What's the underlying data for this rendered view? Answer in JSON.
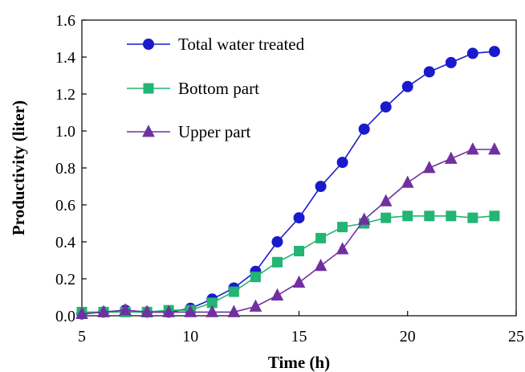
{
  "chart_data": {
    "type": "line",
    "title": "",
    "xlabel": "Time (h)",
    "ylabel": "Productivity (liter)",
    "xlim": [
      5,
      25
    ],
    "ylim": [
      0,
      1.6
    ],
    "xticks": [
      "5",
      "10",
      "15",
      "20",
      "25"
    ],
    "yticks": [
      "0.0",
      "0.2",
      "0.4",
      "0.6",
      "0.8",
      "1.0",
      "1.2",
      "1.4",
      "1.6"
    ],
    "grid": false,
    "legend_position": "top-left",
    "x": [
      5,
      6,
      7,
      8,
      9,
      10,
      11,
      12,
      13,
      14,
      15,
      16,
      17,
      18,
      19,
      20,
      21,
      22,
      23,
      24
    ],
    "series": [
      {
        "name": "Total water treated",
        "color": "#1a1acd",
        "marker": "circle",
        "values": [
          0.01,
          0.02,
          0.03,
          0.02,
          0.02,
          0.04,
          0.09,
          0.15,
          0.24,
          0.4,
          0.53,
          0.7,
          0.83,
          1.01,
          1.13,
          1.24,
          1.32,
          1.37,
          1.42,
          1.43
        ]
      },
      {
        "name": "Bottom part",
        "color": "#22b573",
        "marker": "square",
        "values": [
          0.02,
          0.02,
          0.02,
          0.02,
          0.03,
          0.03,
          0.07,
          0.13,
          0.21,
          0.29,
          0.35,
          0.42,
          0.48,
          0.5,
          0.53,
          0.54,
          0.54,
          0.54,
          0.53,
          0.54
        ]
      },
      {
        "name": "Upper part",
        "color": "#7030a0",
        "marker": "triangle",
        "values": [
          0.01,
          0.02,
          0.03,
          0.02,
          0.02,
          0.02,
          0.02,
          0.02,
          0.05,
          0.11,
          0.18,
          0.27,
          0.36,
          0.52,
          0.62,
          0.72,
          0.8,
          0.85,
          0.9,
          0.9
        ]
      }
    ]
  }
}
